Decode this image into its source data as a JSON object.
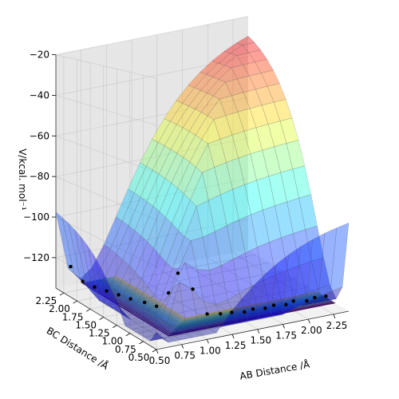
{
  "chart_data": {
    "type": "surface",
    "title": "",
    "xlabel": "AB Distance /Å",
    "ylabel": "BC Distance /Å",
    "zlabel": "V/kcal. mol⁻¹",
    "xlim": [
      0.5,
      2.4
    ],
    "ylim": [
      0.5,
      2.4
    ],
    "zlim": [
      -135,
      -20
    ],
    "x_ticks": [
      "0.50",
      "0.75",
      "1.00",
      "1.25",
      "1.50",
      "1.75",
      "2.00",
      "2.25"
    ],
    "y_ticks": [
      "0.50",
      "0.75",
      "1.00",
      "1.25",
      "1.50",
      "1.75",
      "2.00",
      "2.25"
    ],
    "z_ticks": [
      "−20",
      "−40",
      "−60",
      "−80",
      "−100",
      "−120"
    ],
    "x_tick_values": [
      0.5,
      0.75,
      1.0,
      1.25,
      1.5,
      1.75,
      2.0,
      2.25
    ],
    "y_tick_values": [
      0.5,
      0.75,
      1.0,
      1.25,
      1.5,
      1.75,
      2.0,
      2.25
    ],
    "z_tick_values": [
      -20,
      -40,
      -60,
      -80,
      -100,
      -120
    ],
    "surface_colormap": "jet",
    "surface_alpha": 0.4,
    "contour_colormap": "viridis",
    "contour_levels": [
      -130,
      -126,
      -122,
      -118,
      -114,
      -110,
      -106,
      -102,
      -98,
      -94,
      -90,
      -86,
      -82,
      -78,
      -74,
      -70
    ],
    "contour_floor_z": -135,
    "trajectory_color": "#000000",
    "trajectory_points": [
      [
        2.3,
        0.74
      ],
      [
        2.2,
        0.76
      ],
      [
        2.1,
        0.72
      ],
      [
        2.0,
        0.78
      ],
      [
        1.9,
        0.73
      ],
      [
        1.8,
        0.77
      ],
      [
        1.7,
        0.74
      ],
      [
        1.6,
        0.78
      ],
      [
        1.5,
        0.75
      ],
      [
        1.4,
        0.8
      ],
      [
        1.3,
        0.82
      ],
      [
        1.2,
        0.88
      ],
      [
        1.1,
        0.96
      ],
      [
        1.0,
        1.05
      ],
      [
        0.96,
        1.15
      ],
      [
        0.92,
        1.3
      ],
      [
        0.88,
        1.45
      ],
      [
        0.82,
        1.6
      ],
      [
        0.78,
        1.75
      ],
      [
        0.74,
        1.9
      ],
      [
        0.7,
        2.05
      ],
      [
        0.66,
        2.2
      ],
      [
        0.62,
        2.35
      ]
    ],
    "grid": true,
    "view": {
      "elev": 10,
      "azim": -120
    }
  }
}
